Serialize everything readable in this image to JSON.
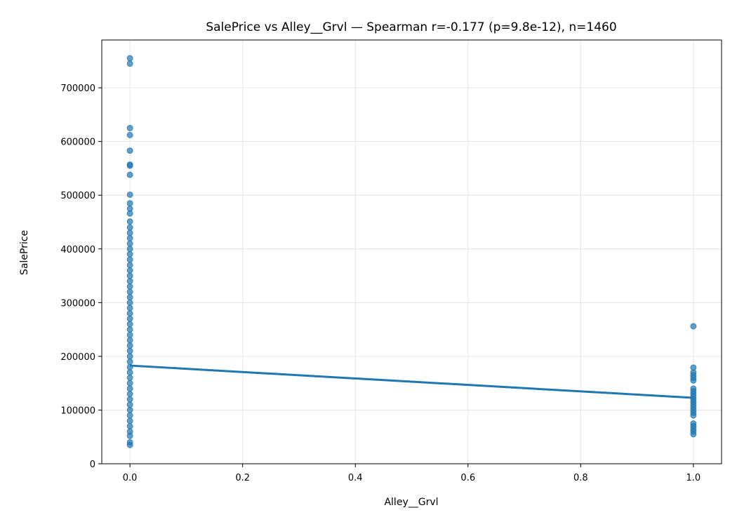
{
  "chart_data": {
    "type": "scatter",
    "title": "SalePrice vs Alley__Grvl — Spearman r=-0.177 (p=9.8e-12), n=1460",
    "x_label": "Alley__Grvl",
    "y_label": "SalePrice",
    "xlim": [
      -0.05,
      1.05
    ],
    "ylim": [
      0,
      789000
    ],
    "xticks": [
      {
        "value": 0,
        "label": "0.0"
      },
      0.2,
      0.4,
      0.6,
      0.8,
      {
        "value": 1,
        "label": "1.0"
      }
    ],
    "yticks": [
      0,
      100000,
      200000,
      300000,
      400000,
      500000,
      600000,
      700000
    ],
    "grid": true,
    "series": [
      {
        "type": "scatter",
        "color": "#1f77b4",
        "x": [
          0,
          0,
          0,
          0,
          0,
          0,
          0,
          0,
          0,
          0,
          0,
          0,
          0,
          0,
          0,
          0,
          0,
          0,
          0,
          0,
          0,
          0,
          0,
          0,
          0,
          0,
          0,
          0,
          0,
          0,
          0,
          0,
          0,
          0,
          0,
          0,
          0,
          0,
          0,
          0,
          0,
          0,
          0,
          0,
          0,
          0,
          0,
          0,
          0,
          0,
          0,
          0,
          0,
          0,
          0,
          1,
          1,
          1,
          1,
          1,
          1,
          1,
          1,
          1,
          1,
          1,
          1,
          1,
          1,
          1,
          1,
          1,
          1,
          1,
          1,
          1,
          1
        ],
        "values": [
          755000,
          745000,
          625000,
          612000,
          583000,
          557000,
          555000,
          538000,
          501000,
          485000,
          475000,
          466000,
          451000,
          440000,
          430000,
          420000,
          410000,
          400000,
          390000,
          380000,
          370000,
          360000,
          350000,
          340000,
          330000,
          320000,
          310000,
          300000,
          290000,
          280000,
          270000,
          260000,
          250000,
          240000,
          230000,
          220000,
          210000,
          200000,
          190000,
          180000,
          170000,
          160000,
          150000,
          140000,
          130000,
          120000,
          110000,
          100000,
          90000,
          80000,
          70000,
          60000,
          52000,
          40000,
          35000,
          256000,
          179000,
          170000,
          165000,
          160000,
          155000,
          140000,
          135000,
          130000,
          125000,
          120000,
          115000,
          110000,
          105000,
          100000,
          95000,
          90000,
          75000,
          70000,
          65000,
          60000,
          55000
        ]
      },
      {
        "type": "line",
        "color": "#1f77b4",
        "x": [
          0,
          1
        ],
        "values": [
          182800,
          122800
        ]
      }
    ]
  }
}
